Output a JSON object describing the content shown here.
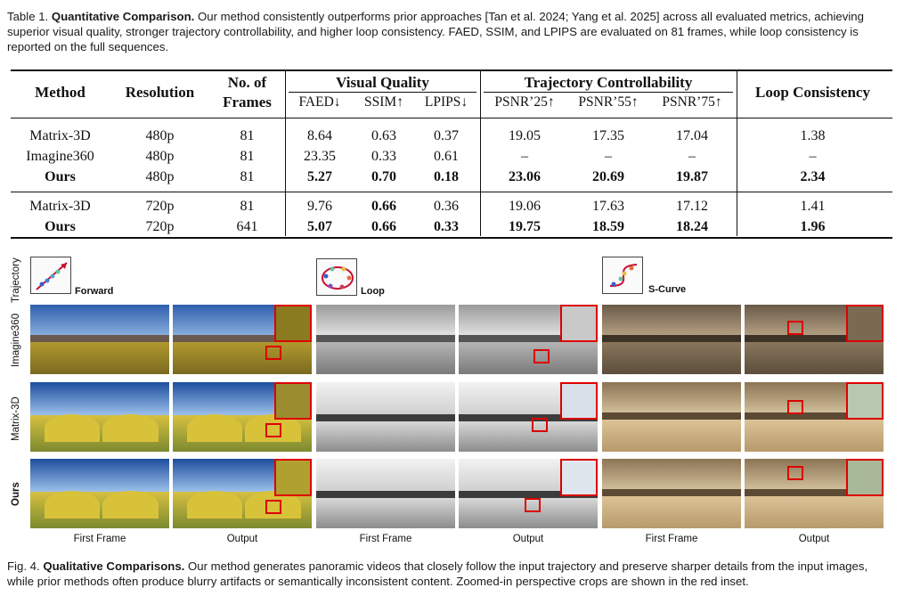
{
  "table_caption": {
    "label": "Table 1.",
    "title": "Quantitative Comparison.",
    "text": "Our method consistently outperforms prior approaches [Tan et al. 2024; Yang et al. 2025] across all evaluated metrics, achieving superior visual quality, stronger trajectory controllability, and higher loop consistency. FAED, SSIM, and LPIPS are evaluated on 81 frames, while loop consistency is reported on the full sequences."
  },
  "table": {
    "headers": {
      "method": "Method",
      "resolution": "Resolution",
      "frames_line1": "No. of",
      "frames_line2": "Frames",
      "visual_quality": "Visual Quality",
      "trajectory": "Trajectory Controllability",
      "loop": "Loop Consistency",
      "faed": "FAED↓",
      "ssim": "SSIM↑",
      "lpips": "LPIPS↓",
      "psnr25": "PSNR’25↑",
      "psnr55": "PSNR’55↑",
      "psnr75": "PSNR’75↑"
    },
    "rows": [
      [
        "Matrix-3D",
        "480p",
        "81",
        "8.64",
        "0.63",
        "0.37",
        "19.05",
        "17.35",
        "17.04",
        "1.38"
      ],
      [
        "Imagine360",
        "480p",
        "81",
        "23.35",
        "0.33",
        "0.61",
        "–",
        "–",
        "–",
        "–"
      ],
      [
        "Ours",
        "480p",
        "81",
        "5.27",
        "0.70",
        "0.18",
        "23.06",
        "20.69",
        "19.87",
        "2.34"
      ],
      [
        "Matrix-3D",
        "720p",
        "81",
        "9.76",
        "0.66",
        "0.36",
        "19.06",
        "17.63",
        "17.12",
        "1.41"
      ],
      [
        "Ours",
        "720p",
        "641",
        "5.07",
        "0.66",
        "0.33",
        "19.75",
        "18.59",
        "18.24",
        "1.96"
      ]
    ]
  },
  "figure": {
    "row_labels": [
      "Trajectory",
      "Imagine360",
      "Matrix-3D",
      "Ours"
    ],
    "trajectories": [
      "Forward",
      "Loop",
      "S-Curve"
    ],
    "column_captions": [
      "First Frame",
      "Output",
      "First Frame",
      "Output",
      "First Frame",
      "Output"
    ],
    "caption_label": "Fig. 4.",
    "caption_title": "Qualitative Comparisons.",
    "caption_text": "Our method generates panoramic videos that closely follow the input trajectory and preserve sharper details from the input images, while prior methods often produce blurry artifacts or semantically inconsistent content. Zoomed-in perspective crops are shown in the red inset."
  },
  "colors": {
    "inset_border": "#dd0000",
    "campus_sky": "#3f6fb8",
    "campus_ground": "#c8b030",
    "office_sky": "#dcdcdc",
    "office_ground": "#a9a9a9",
    "lobby_sky": "#b9a27c",
    "lobby_ground": "#d9c29a"
  }
}
